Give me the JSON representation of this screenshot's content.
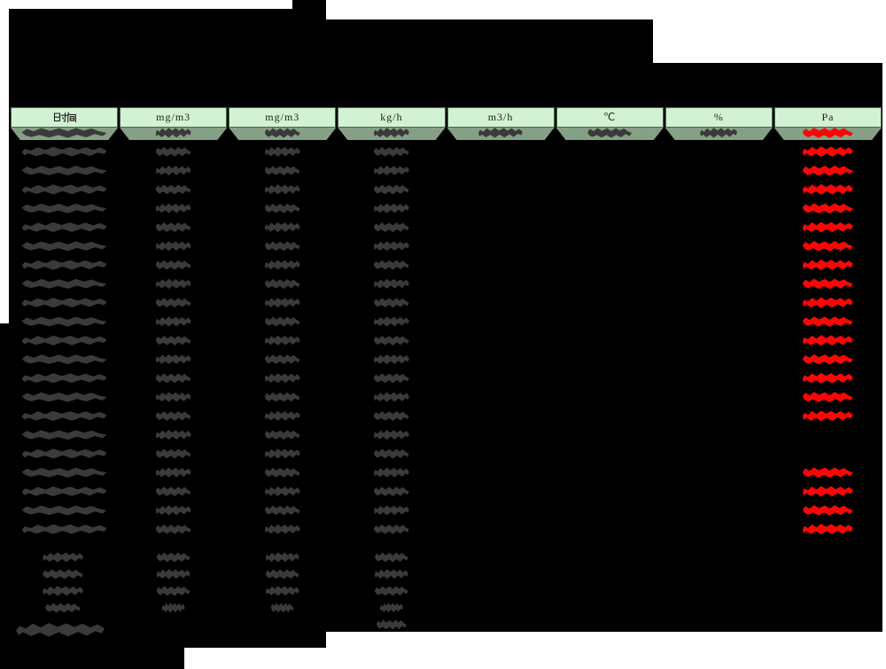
{
  "colors": {
    "backdrop": "#000000",
    "page_background": "#ffffff",
    "header_bg": "#d3f2d3",
    "header_text": "#1f1f1f",
    "band_bg": "#85a085",
    "redaction_dark": "#3a3a3a",
    "redaction_red": "#f80707"
  },
  "table": {
    "headers": [
      "时间",
      "mg/m3",
      "mg/m3",
      "kg/h",
      "m3/h",
      "℃",
      "%",
      "Pa"
    ],
    "redaction": {
      "data_rows": 22,
      "dark_all_rows_columns": [
        0,
        1,
        2,
        3
      ],
      "first_row_extra_columns": [
        4,
        5,
        6
      ],
      "red_column": 7,
      "red_rows": [
        1,
        2,
        3,
        4,
        5,
        6,
        7,
        8,
        9,
        10,
        11,
        12,
        13,
        14,
        15,
        16,
        19,
        20,
        21,
        22
      ],
      "summary_rows": 4,
      "summary_columns": [
        0,
        1,
        2,
        3
      ],
      "footer_columns": [
        0,
        3
      ]
    }
  }
}
